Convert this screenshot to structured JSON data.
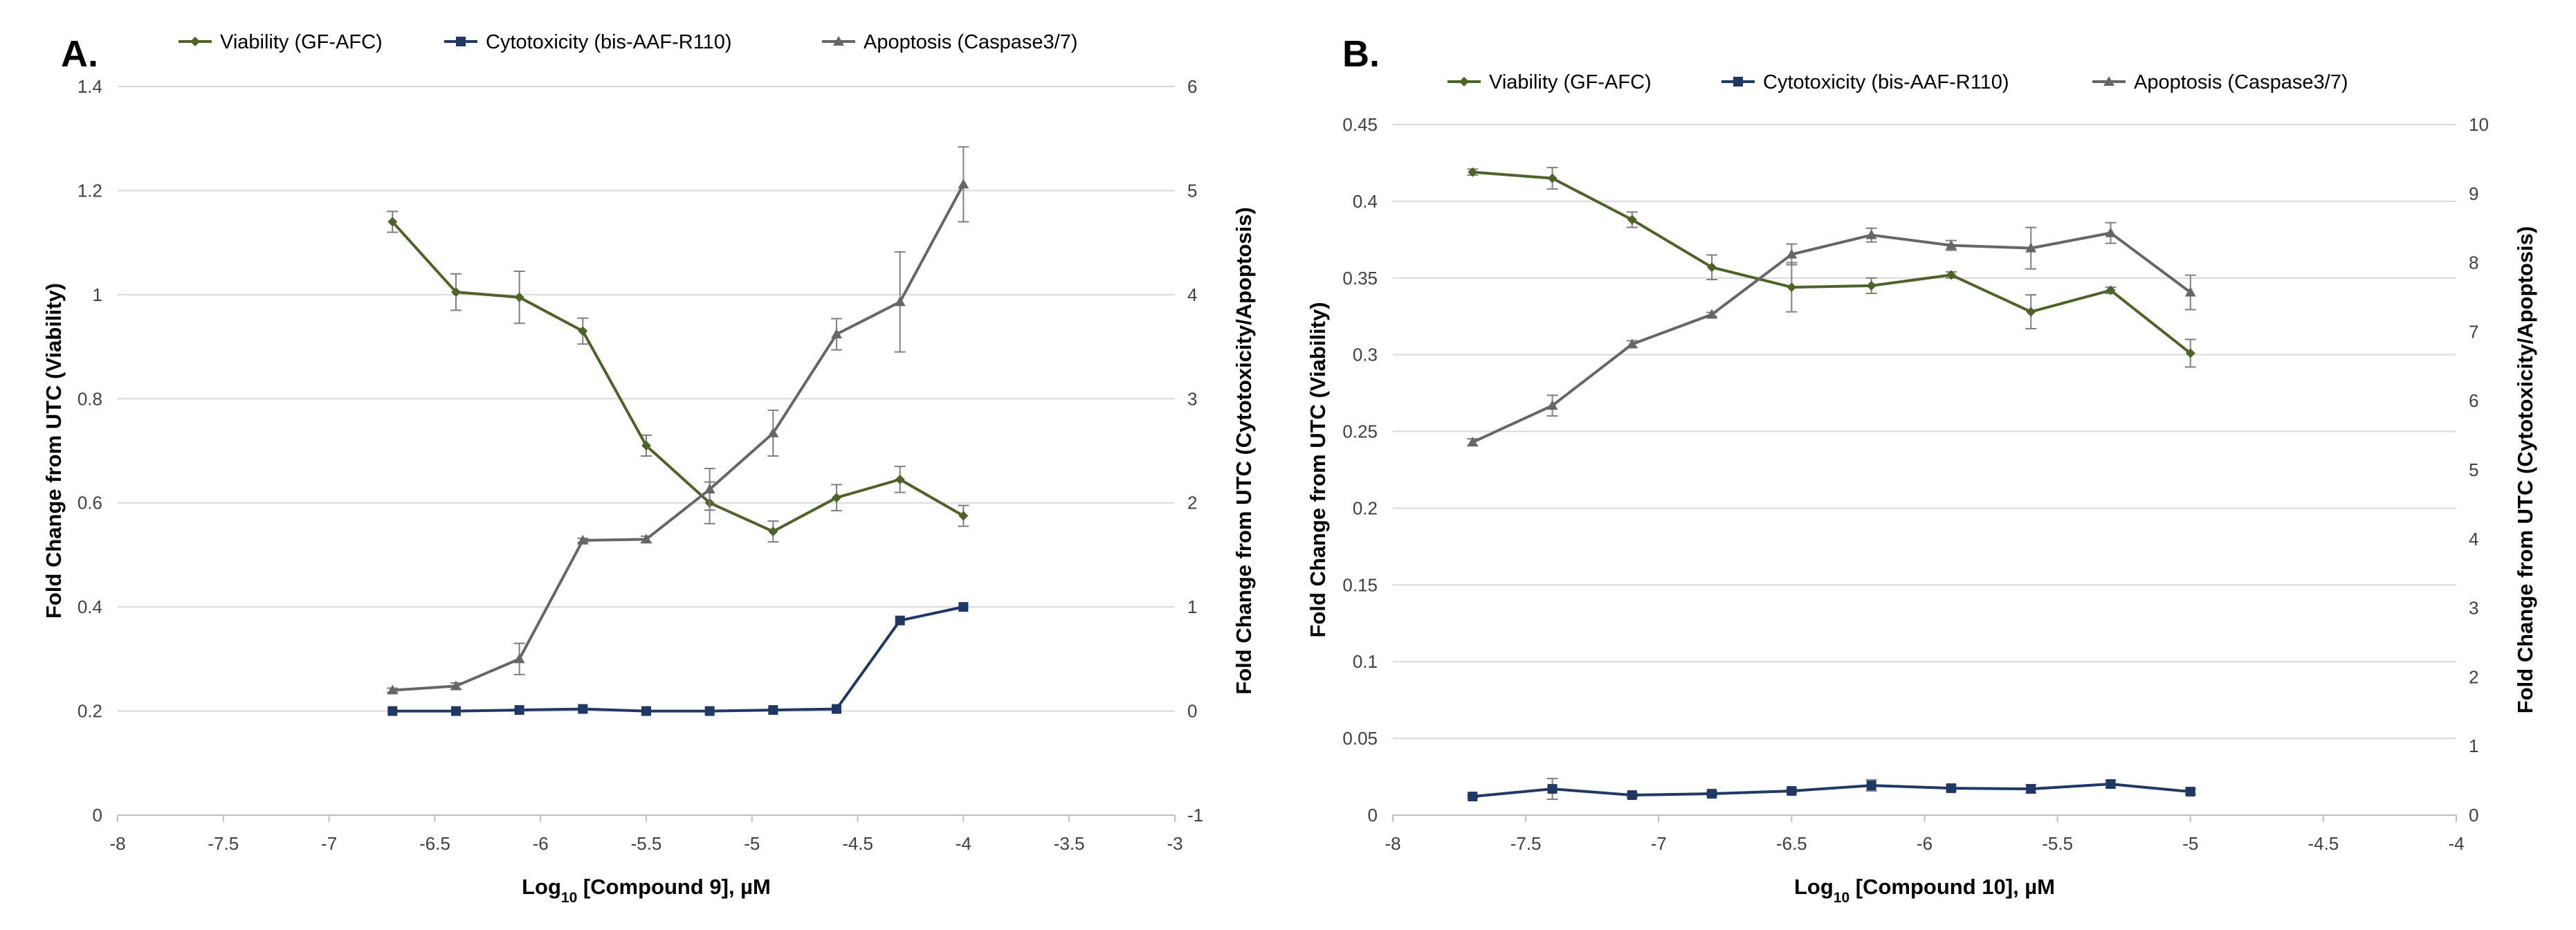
{
  "chart_data": [
    {
      "type": "line",
      "panel_label": "A.",
      "xlabel_pre": "Log",
      "xlabel_sub": "10",
      "xlabel_post": " [Compound  9], µM",
      "ylabel": "Fold Change from UTC (Viability)",
      "y2label": "Fold Change from UTC (Cytotoxicity/Apoptosis)",
      "xlim": [
        -8,
        -3
      ],
      "xticks": [
        -8,
        -7.5,
        -7,
        -6.5,
        -6,
        -5.5,
        -5,
        -4.5,
        -4,
        -3.5,
        -3
      ],
      "xtick_labels": [
        "-8",
        "-7.5",
        "-7",
        "-6.5",
        "-6",
        "-5.5",
        "-5",
        "-4.5",
        "-4",
        "-3.5",
        "-3"
      ],
      "ylim": [
        0,
        1.4
      ],
      "yticks": [
        0,
        0.2,
        0.4,
        0.6,
        0.8,
        1,
        1.2,
        1.4
      ],
      "ytick_labels": [
        "0",
        "0.2",
        "0.4",
        "0.6",
        "0.8",
        "1",
        "1.2",
        "1.4"
      ],
      "y2lim": [
        -1,
        6
      ],
      "y2ticks": [
        -1,
        0,
        1,
        2,
        3,
        4,
        5,
        6
      ],
      "y2tick_labels": [
        "-1",
        "0",
        "1",
        "2",
        "3",
        "4",
        "5",
        "6"
      ],
      "grid": true,
      "legend_position": "top",
      "x": [
        -6.7,
        -6.4,
        -6.1,
        -5.8,
        -5.5,
        -5.2,
        -4.9,
        -4.6,
        -4.3,
        -4.0
      ],
      "series": [
        {
          "name": "Viability (GF-AFC)",
          "axis": "left",
          "marker": "diamond",
          "color": "#4f6228",
          "values": [
            1.14,
            1.005,
            0.995,
            0.93,
            0.71,
            0.6,
            0.545,
            0.61,
            0.645,
            0.575
          ],
          "errors": [
            0.02,
            0.035,
            0.05,
            0.025,
            0.02,
            0.04,
            0.02,
            0.025,
            0.025,
            0.02
          ]
        },
        {
          "name": "Cytotoxicity (bis-AAF-R110)",
          "axis": "right",
          "marker": "square",
          "color": "#1f3864",
          "values": [
            0.0,
            0.0,
            0.01,
            0.02,
            0.0,
            0.0,
            0.01,
            0.02,
            0.87,
            1.0
          ],
          "errors": [
            0,
            0,
            0,
            0,
            0,
            0,
            0,
            0,
            0,
            0
          ]
        },
        {
          "name": "Apoptosis (Caspase3/7)",
          "axis": "right",
          "marker": "triangle",
          "color": "#666666",
          "values": [
            0.2,
            0.24,
            0.5,
            1.64,
            1.65,
            2.13,
            2.67,
            3.62,
            3.93,
            5.06
          ],
          "errors": [
            0.02,
            0.03,
            0.15,
            0.02,
            0.03,
            0.2,
            0.22,
            0.15,
            0.48,
            0.36
          ]
        }
      ]
    },
    {
      "type": "line",
      "panel_label": "B.",
      "xlabel_pre": "Log",
      "xlabel_sub": "10",
      "xlabel_post": " [Compound  10], µM",
      "ylabel": "Fold Change from UTC (Viability)",
      "y2label": "Fold Change from UTC (Cytotoxicity/Apoptosis)",
      "xlim": [
        -8,
        -4
      ],
      "xticks": [
        -8,
        -7.5,
        -7,
        -6.5,
        -6,
        -5.5,
        -5,
        -4.5,
        -4
      ],
      "xtick_labels": [
        "-8",
        "-7.5",
        "-7",
        "-6.5",
        "-6",
        "-5.5",
        "-5",
        "-4.5",
        "-4"
      ],
      "ylim": [
        0,
        0.45
      ],
      "yticks": [
        0,
        0.05,
        0.1,
        0.15,
        0.2,
        0.25,
        0.3,
        0.35,
        0.4,
        0.45
      ],
      "ytick_labels": [
        "0",
        "0.05",
        "0.1",
        "0.15",
        "0.2",
        "0.25",
        "0.3",
        "0.35",
        "0.4",
        "0.45"
      ],
      "y2lim": [
        0,
        10
      ],
      "y2ticks": [
        0,
        1,
        2,
        3,
        4,
        5,
        6,
        7,
        8,
        9,
        10
      ],
      "y2tick_labels": [
        "0",
        "1",
        "2",
        "3",
        "4",
        "5",
        "6",
        "7",
        "8",
        "9",
        "10"
      ],
      "grid": true,
      "legend_position": "top",
      "x": [
        -7.7,
        -7.4,
        -7.1,
        -6.8,
        -6.5,
        -6.2,
        -5.9,
        -5.6,
        -5.3,
        -5.0
      ],
      "series": [
        {
          "name": "Viability (GF-AFC)",
          "axis": "left",
          "marker": "diamond",
          "color": "#4f6228",
          "values": [
            0.419,
            0.415,
            0.388,
            0.357,
            0.344,
            0.345,
            0.352,
            0.328,
            0.342,
            0.301
          ],
          "errors": [
            0.002,
            0.007,
            0.005,
            0.008,
            0.016,
            0.005,
            0.002,
            0.011,
            0.002,
            0.009
          ]
        },
        {
          "name": "Cytotoxicity (bis-AAF-R110)",
          "axis": "right",
          "marker": "square",
          "color": "#1f3864",
          "values": [
            0.27,
            0.38,
            0.29,
            0.31,
            0.35,
            0.43,
            0.39,
            0.38,
            0.45,
            0.34
          ],
          "errors": [
            0.02,
            0.15,
            0.03,
            0.03,
            0.03,
            0.08,
            0.04,
            0.06,
            0.05,
            0.04
          ]
        },
        {
          "name": "Apoptosis (Caspase3/7)",
          "axis": "right",
          "marker": "triangle",
          "color": "#666666",
          "values": [
            5.4,
            5.93,
            6.82,
            7.25,
            8.12,
            8.4,
            8.25,
            8.21,
            8.43,
            7.57
          ],
          "errors": [
            0.05,
            0.15,
            0.05,
            0.03,
            0.15,
            0.1,
            0.07,
            0.3,
            0.15,
            0.25
          ]
        }
      ]
    }
  ]
}
